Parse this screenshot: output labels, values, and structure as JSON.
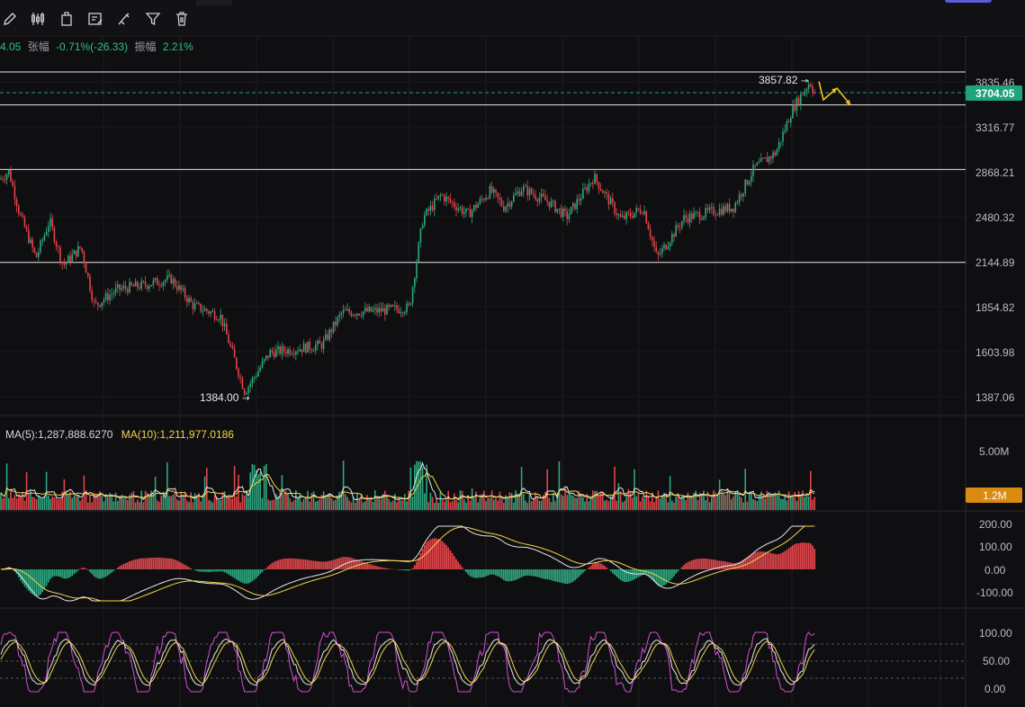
{
  "toolbar": {
    "icons": [
      "pencil-icon",
      "candlestick-icon",
      "template-icon",
      "edit-list-icon",
      "paint-icon",
      "filter-icon",
      "trash-icon"
    ]
  },
  "stats": {
    "open_text": "4.05",
    "change_label": "张幅",
    "change_value": "-0.71%(-26.33)",
    "amplitude_label": "振幅",
    "amplitude_value": "2.21%"
  },
  "price_axis": {
    "ticks": [
      "3835.46",
      "3316.77",
      "2868.21",
      "2480.32",
      "2144.89",
      "1854.82",
      "1603.98",
      "1387.06"
    ],
    "current_price": "3704.05"
  },
  "annotations": {
    "high_label": "3857.82",
    "low_label": "1384.00"
  },
  "volume": {
    "ma5_label": "MA(5):1,287,888.6270",
    "ma10_label": "MA(10):1,211,977.0186",
    "axis_top": "5.00M",
    "current_badge": "1.2M"
  },
  "macd": {
    "ticks": [
      "200.00",
      "100.00",
      "0.00",
      "-100.00"
    ]
  },
  "kdj": {
    "ticks": [
      "100.00",
      "50.00",
      "0.00"
    ]
  },
  "colors": {
    "up": "#2ea67f",
    "down": "#e0444a",
    "ma_yellow": "#f0d34a",
    "kdj_pink": "#d24fd0",
    "badge_green": "#1fa37a",
    "badge_orange": "#d98a11",
    "arrow": "#f2c21b"
  },
  "chart_data": [
    {
      "type": "candlestick",
      "title": "",
      "ylim": [
        1387.06,
        3835.46
      ],
      "y_scale": "log",
      "grid": true,
      "high": 3857.82,
      "low": 1384.0,
      "last": 3704.05,
      "horizontal_levels": [
        3960,
        3560,
        2890,
        2140
      ],
      "path": [
        [
          0,
          2800
        ],
        [
          10,
          2870
        ],
        [
          22,
          2500
        ],
        [
          40,
          2170
        ],
        [
          55,
          2450
        ],
        [
          70,
          2120
        ],
        [
          90,
          2250
        ],
        [
          105,
          1860
        ],
        [
          130,
          1960
        ],
        [
          160,
          1990
        ],
        [
          190,
          2030
        ],
        [
          215,
          1860
        ],
        [
          245,
          1800
        ],
        [
          272,
          1410
        ],
        [
          300,
          1600
        ],
        [
          330,
          1620
        ],
        [
          358,
          1640
        ],
        [
          380,
          1820
        ],
        [
          420,
          1830
        ],
        [
          455,
          1850
        ],
        [
          470,
          2470
        ],
        [
          490,
          2660
        ],
        [
          520,
          2500
        ],
        [
          545,
          2700
        ],
        [
          560,
          2560
        ],
        [
          580,
          2720
        ],
        [
          610,
          2600
        ],
        [
          630,
          2480
        ],
        [
          660,
          2820
        ],
        [
          690,
          2460
        ],
        [
          715,
          2550
        ],
        [
          730,
          2170
        ],
        [
          760,
          2470
        ],
        [
          790,
          2520
        ],
        [
          815,
          2560
        ],
        [
          838,
          2900
        ],
        [
          862,
          3050
        ],
        [
          880,
          3500
        ],
        [
          900,
          3840
        ],
        [
          905,
          3700
        ]
      ],
      "projection_arrows": [
        [
          910,
          3840,
          915,
          3620,
          930,
          3760
        ],
        [
          930,
          3760,
          945,
          3560
        ]
      ]
    },
    {
      "type": "bar",
      "name": "volume",
      "ylim": [
        0,
        5000000
      ],
      "ma5": 1287888.627,
      "ma10": 1211977.0186,
      "last": 1200000
    },
    {
      "type": "bar",
      "name": "MACD",
      "ylim": [
        -100,
        200
      ]
    },
    {
      "type": "line",
      "name": "KDJ",
      "ylim": [
        0,
        100
      ],
      "reference_levels": [
        20,
        50,
        80
      ]
    }
  ]
}
